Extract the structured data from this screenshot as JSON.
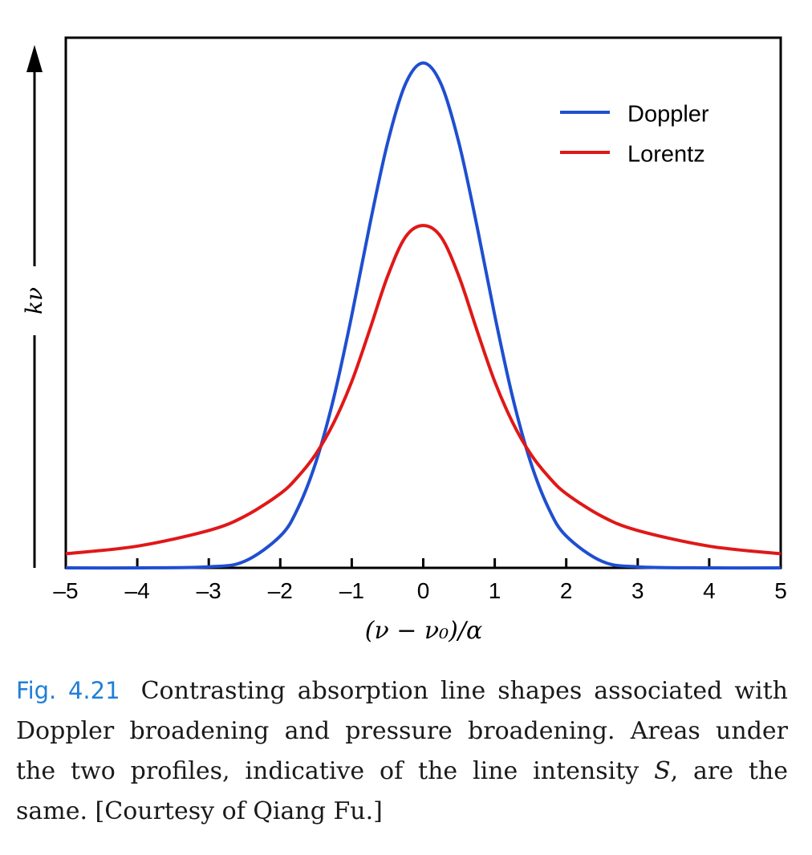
{
  "chart_data": {
    "type": "line",
    "title": "",
    "xlabel": "(ν − ν₀)/α",
    "ylabel": "kν",
    "xlim": [
      -5,
      5
    ],
    "ylim": [
      0,
      1.05
    ],
    "x_ticks": [
      -5,
      -4,
      -3,
      -2,
      -1,
      0,
      1,
      2,
      3,
      4,
      5
    ],
    "x_tick_labels": [
      "–5",
      "–4",
      "–3",
      "–2",
      "–1",
      "0",
      "1",
      "2",
      "3",
      "4",
      "5"
    ],
    "grid": false,
    "legend_position": "top-right",
    "series": [
      {
        "name": "Doppler",
        "color": "#1f4fd0",
        "x": [
          -5,
          -4,
          -3,
          -2.5,
          -2,
          -1.75,
          -1.5,
          -1.25,
          -1,
          -0.75,
          -0.5,
          -0.25,
          0,
          0.25,
          0.5,
          0.75,
          1,
          1.25,
          1.5,
          1.75,
          2,
          2.5,
          3,
          4,
          5
        ],
        "y": [
          0,
          0,
          0.002,
          0.013,
          0.063,
          0.119,
          0.21,
          0.338,
          0.5,
          0.678,
          0.841,
          0.958,
          1.0,
          0.958,
          0.841,
          0.678,
          0.5,
          0.338,
          0.21,
          0.119,
          0.063,
          0.013,
          0.002,
          0,
          0
        ]
      },
      {
        "name": "Lorentz",
        "color": "#e01818",
        "x": [
          -5,
          -4,
          -3,
          -2.5,
          -2,
          -1.75,
          -1.5,
          -1.25,
          -1,
          -0.75,
          -0.5,
          -0.25,
          0,
          0.25,
          0.5,
          0.75,
          1,
          1.25,
          1.5,
          1.75,
          2,
          2.5,
          3,
          4,
          5
        ],
        "y": [
          0.028,
          0.043,
          0.074,
          0.102,
          0.147,
          0.181,
          0.226,
          0.288,
          0.369,
          0.471,
          0.577,
          0.655,
          0.678,
          0.655,
          0.577,
          0.471,
          0.369,
          0.288,
          0.226,
          0.181,
          0.147,
          0.102,
          0.074,
          0.043,
          0.028
        ]
      }
    ]
  },
  "caption": {
    "label": "Fig. 4.21",
    "text_before_symbol": "Contrasting absorption line shapes associated with Doppler broadening and pressure broadening. Areas under the two profiles, indicative of the line intensity ",
    "symbol": "S",
    "text_after_symbol": ", are the same. [Courtesy of Qiang Fu.]"
  }
}
